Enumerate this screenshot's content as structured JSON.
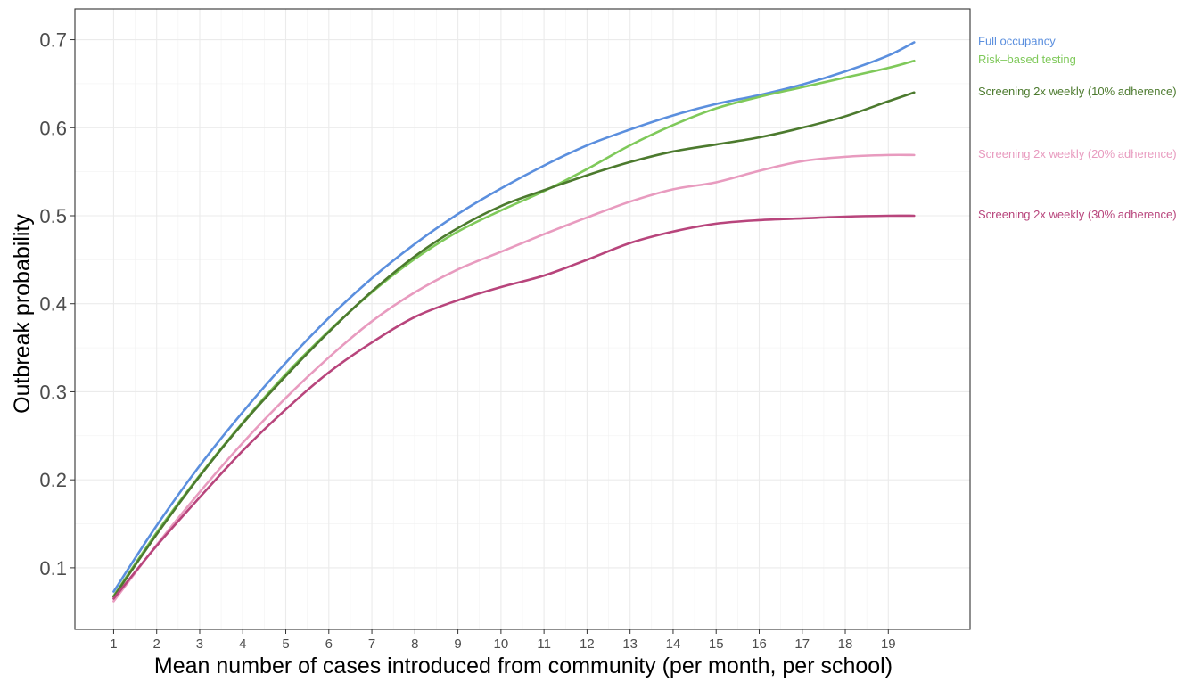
{
  "chart_data": {
    "type": "line",
    "xlabel": "Mean number of cases introduced from community (per month, per school)",
    "ylabel": "Outbreak probability",
    "xlim": [
      0.1,
      20.9
    ],
    "ylim": [
      0.03,
      0.735
    ],
    "x_ticks": [
      1,
      2,
      3,
      4,
      5,
      6,
      7,
      8,
      9,
      10,
      11,
      12,
      13,
      14,
      15,
      16,
      17,
      18,
      19
    ],
    "y_ticks": [
      0.1,
      0.2,
      0.3,
      0.4,
      0.5,
      0.6,
      0.7
    ],
    "grid": true,
    "legend_placement": "right (direct labels at line ends)",
    "x": [
      1,
      2,
      3,
      4,
      5,
      6,
      7,
      8,
      9,
      10,
      11,
      12,
      13,
      14,
      15,
      16,
      17,
      18,
      19,
      19.6
    ],
    "series": [
      {
        "name": "Full occupancy",
        "color": "#5b8fde",
        "values": [
          0.073,
          0.148,
          0.216,
          0.277,
          0.333,
          0.384,
          0.429,
          0.468,
          0.502,
          0.531,
          0.557,
          0.58,
          0.598,
          0.614,
          0.627,
          0.637,
          0.649,
          0.664,
          0.682,
          0.697
        ]
      },
      {
        "name": "Risk–based testing",
        "color": "#7fc95a",
        "values": [
          0.068,
          0.14,
          0.205,
          0.265,
          0.32,
          0.369,
          0.413,
          0.451,
          0.482,
          0.506,
          0.528,
          0.553,
          0.58,
          0.603,
          0.622,
          0.635,
          0.646,
          0.657,
          0.668,
          0.676
        ]
      },
      {
        "name": "Screening 2x weekly (10% adherence)",
        "color": "#4c7a2e",
        "values": [
          0.067,
          0.138,
          0.204,
          0.264,
          0.318,
          0.368,
          0.414,
          0.454,
          0.486,
          0.511,
          0.529,
          0.546,
          0.561,
          0.573,
          0.581,
          0.589,
          0.6,
          0.613,
          0.63,
          0.64
        ]
      },
      {
        "name": "Screening 2x weekly (20% adherence)",
        "color": "#e89bbf",
        "values": [
          0.062,
          0.126,
          0.186,
          0.242,
          0.293,
          0.339,
          0.38,
          0.413,
          0.439,
          0.459,
          0.479,
          0.498,
          0.516,
          0.53,
          0.538,
          0.551,
          0.562,
          0.567,
          0.569,
          0.569
        ]
      },
      {
        "name": "Screening 2x weekly (30% adherence)",
        "color": "#b8457c",
        "values": [
          0.065,
          0.125,
          0.18,
          0.233,
          0.28,
          0.322,
          0.356,
          0.385,
          0.404,
          0.419,
          0.432,
          0.45,
          0.469,
          0.482,
          0.491,
          0.495,
          0.497,
          0.499,
          0.5,
          0.5
        ]
      }
    ]
  }
}
